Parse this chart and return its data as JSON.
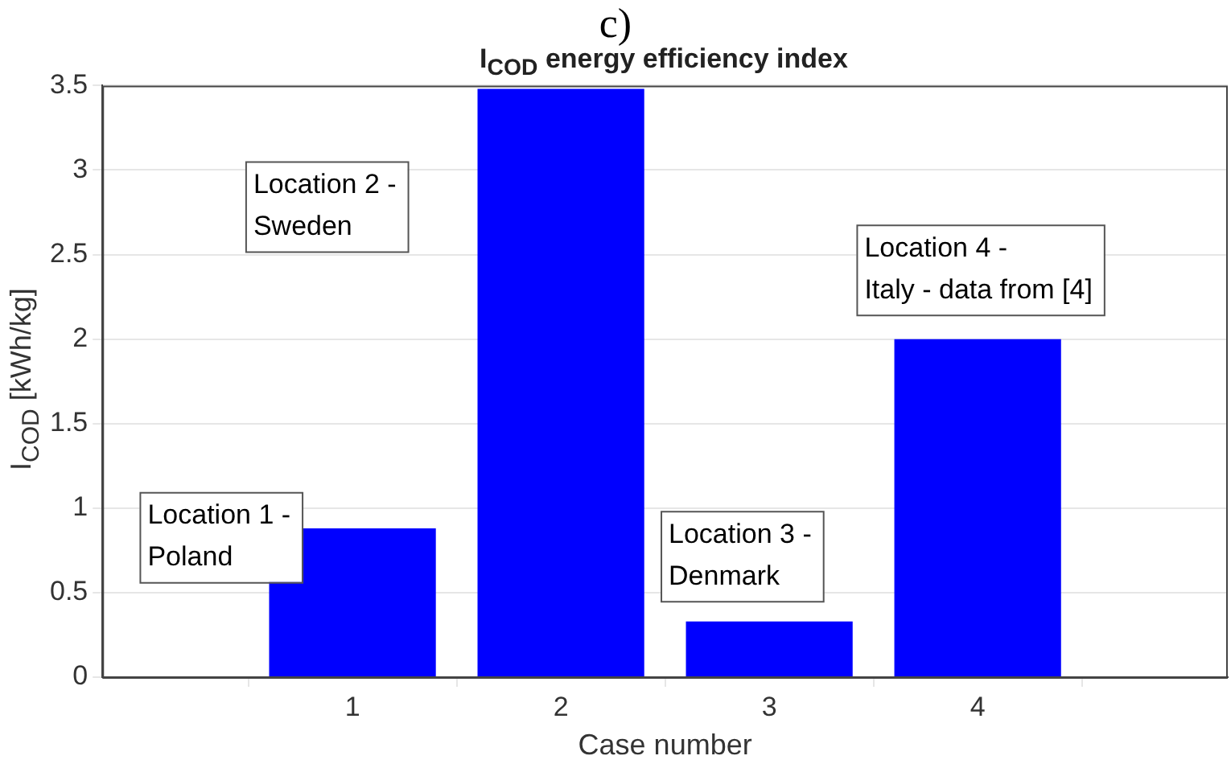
{
  "chart_data": {
    "type": "bar",
    "title": "c)",
    "subtitle": "I$_{COD}$ energy efficiency index",
    "xlabel": "Case number",
    "ylabel": "I$_{COD}$ [kWh/kg]",
    "x": [
      1,
      2,
      3,
      4
    ],
    "values": [
      0.88,
      3.48,
      0.33,
      2.0
    ],
    "color": "#0000ff",
    "xlim": [
      -0.2,
      5.2
    ],
    "xticks": [
      1,
      2,
      3,
      4
    ],
    "ylim": [
      0,
      3.5
    ],
    "yticks": [
      0,
      0.5,
      1,
      1.5,
      2,
      2.5,
      3,
      3.5
    ],
    "grid": "y",
    "annotations": [
      "Location 1 -\nPoland",
      "Location 2 -\nSweden",
      "Location 3 -\nDenmark",
      "Location 4 -\nItaly - data from [4]"
    ]
  }
}
